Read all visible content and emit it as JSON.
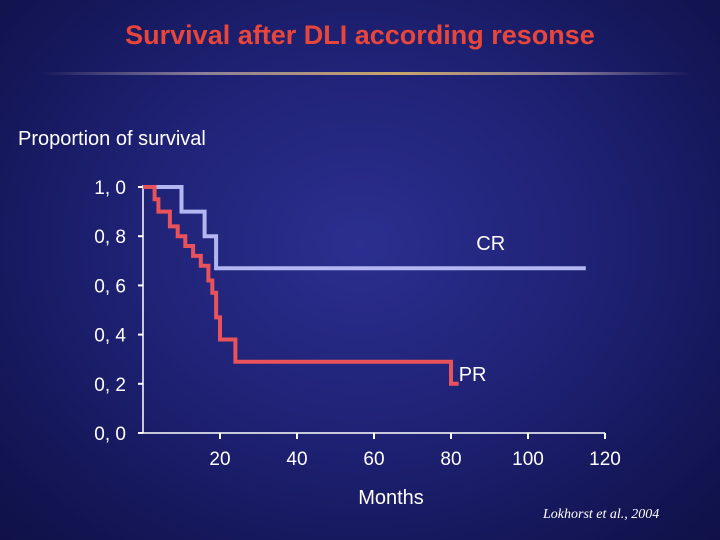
{
  "slide": {
    "title": "Survival after DLI according resonse",
    "citation": "Lokhorst et al., 2004"
  },
  "colors": {
    "background": "#1f2275",
    "title": "#e8463b",
    "cr": "#b3b6f0",
    "pr": "#e8535b",
    "axis": "#ffffff"
  },
  "chart_data": {
    "type": "line",
    "step": true,
    "title": "",
    "ylabel": "Proportion of survival",
    "xlabel": "Months",
    "xlim": [
      0,
      120
    ],
    "ylim": [
      0,
      1
    ],
    "x_ticks": [
      20,
      40,
      60,
      80,
      100,
      120
    ],
    "x_tick_labels": [
      "20",
      "40",
      "60",
      "80",
      "100",
      "120"
    ],
    "y_ticks": [
      0,
      0.2,
      0.4,
      0.6,
      0.8,
      1.0
    ],
    "y_tick_labels": [
      "0, 0",
      "0, 2",
      "0, 4",
      "0, 6",
      "0, 8",
      "1, 0"
    ],
    "grid": false,
    "series": [
      {
        "name": "CR",
        "color": "#b3b6f0",
        "x": [
          0,
          10,
          10,
          16,
          16,
          19,
          19,
          115
        ],
        "y": [
          1.0,
          1.0,
          0.9,
          0.9,
          0.8,
          0.8,
          0.67,
          0.67
        ]
      },
      {
        "name": "PR",
        "color": "#e8535b",
        "x": [
          0,
          3,
          3,
          4,
          4,
          7,
          7,
          9,
          9,
          11,
          11,
          13,
          13,
          15,
          15,
          17,
          17,
          18,
          18,
          19,
          19,
          20,
          20,
          24,
          24,
          80,
          80,
          82
        ],
        "y": [
          1.0,
          1.0,
          0.95,
          0.95,
          0.9,
          0.9,
          0.84,
          0.84,
          0.8,
          0.8,
          0.76,
          0.76,
          0.72,
          0.72,
          0.68,
          0.68,
          0.62,
          0.62,
          0.57,
          0.57,
          0.47,
          0.47,
          0.38,
          0.38,
          0.29,
          0.29,
          0.2,
          0.2
        ]
      }
    ]
  }
}
